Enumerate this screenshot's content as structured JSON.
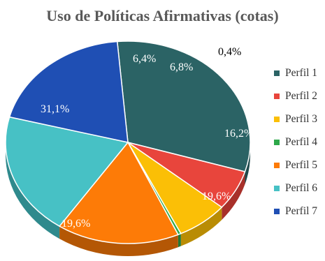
{
  "chart_data": {
    "type": "pie",
    "title": "Uso de Políticas Afirmativas (cotas)",
    "legend_position": "right",
    "slices": [
      {
        "label": "Perfil 1",
        "value": 31.1,
        "display": "31,1%",
        "color": "#2B6365",
        "side": "#1F4A4C",
        "label_color": "#ffffff"
      },
      {
        "label": "Perfil 2",
        "value": 6.4,
        "display": "6,4%",
        "color": "#E8453C",
        "side": "#A8302A",
        "label_color": "#ffffff"
      },
      {
        "label": "Perfil 3",
        "value": 6.8,
        "display": "6,8%",
        "color": "#FBBF06",
        "side": "#B98C04",
        "label_color": "#ffffff"
      },
      {
        "label": "Perfil 4",
        "value": 0.4,
        "display": "0,4%",
        "color": "#2EA84A",
        "side": "#207836",
        "label_color": "#000000"
      },
      {
        "label": "Perfil 5",
        "value": 16.2,
        "display": "16,2%",
        "color": "#FD7B07",
        "side": "#B45705",
        "label_color": "#ffffff"
      },
      {
        "label": "Perfil 6",
        "value": 19.6,
        "display": "19,6%",
        "color": "#47C1C5",
        "side": "#2F8A8D",
        "label_color": "#ffffff"
      },
      {
        "label": "Perfil 7",
        "value": 19.6,
        "display": "19,6%",
        "color": "#1F4FB4",
        "side": "#143579",
        "label_color": "#ffffff"
      }
    ]
  }
}
